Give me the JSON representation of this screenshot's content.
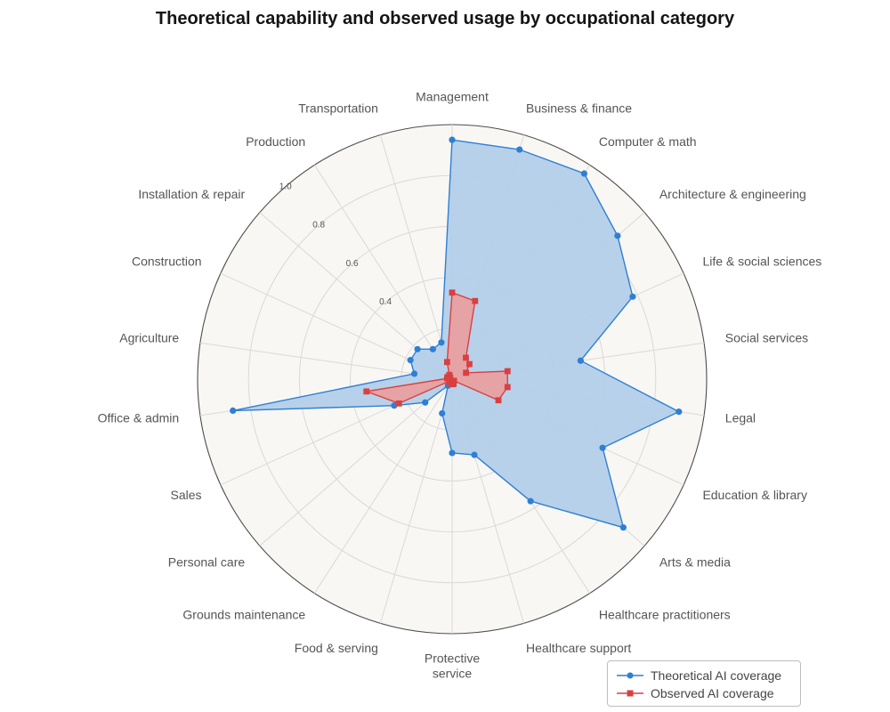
{
  "chart_data": {
    "type": "radar",
    "title": "Theoretical capability and observed usage by occupational category",
    "categories": [
      "Management",
      "Business & finance",
      "Computer & math",
      "Architecture & engineering",
      "Life & social sciences",
      "Social services",
      "Legal",
      "Education & library",
      "Arts & media",
      "Healthcare practitioners",
      "Healthcare support",
      "Protective service",
      "Food & serving",
      "Grounds maintenance",
      "Personal care",
      "Sales",
      "Office & admin",
      "Agriculture",
      "Construction",
      "Installation & repair",
      "Production",
      "Transportation"
    ],
    "series": [
      {
        "name": "Theoretical AI coverage",
        "color": "#2f7fd3",
        "fill": "#b3cfe9",
        "marker": "circle",
        "values": [
          0.94,
          0.94,
          0.96,
          0.86,
          0.78,
          0.51,
          0.9,
          0.65,
          0.89,
          0.57,
          0.31,
          0.29,
          0.14,
          0.03,
          0.14,
          0.25,
          0.87,
          0.15,
          0.18,
          0.18,
          0.14,
          0.15
        ]
      },
      {
        "name": "Observed AI coverage",
        "color": "#d94040",
        "fill": "#ea9d9f",
        "marker": "square",
        "values": [
          0.34,
          0.32,
          0.1,
          0.09,
          0.06,
          0.22,
          0.22,
          0.2,
          0.01,
          0.01,
          0.02,
          0.02,
          0.01,
          0.02,
          0.01,
          0.23,
          0.34,
          0.02,
          0.02,
          0.01,
          0.02,
          0.07
        ]
      }
    ],
    "radial_ticks": [
      "0.4",
      "0.6",
      "0.8",
      "1.0"
    ],
    "tick_values": [
      0.2,
      0.4,
      0.6,
      0.8,
      1.0
    ],
    "r_max": 1.0,
    "grid": true,
    "legend_position": "bottom-right",
    "background_color": "#f8f7f4"
  }
}
